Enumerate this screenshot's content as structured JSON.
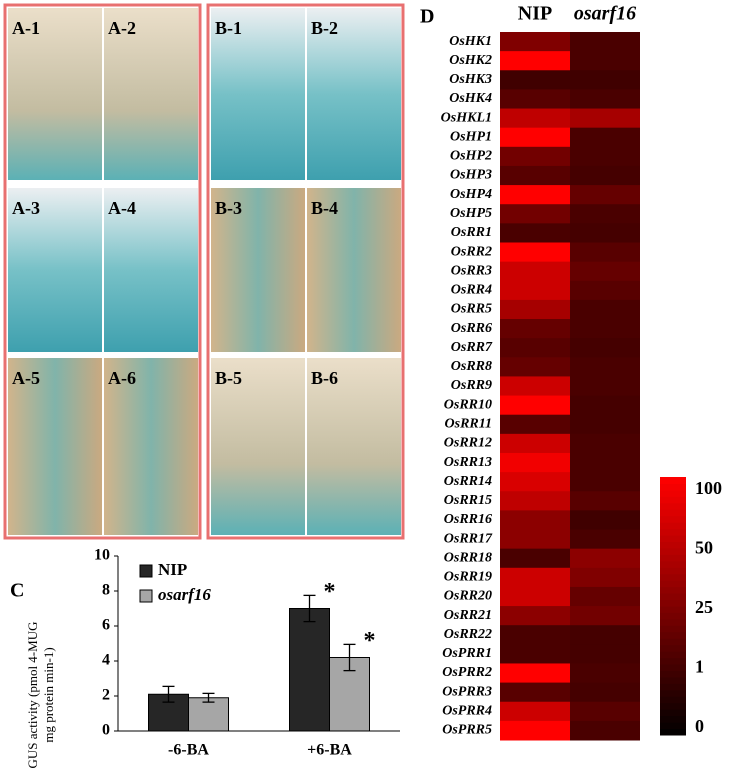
{
  "photo_panels": {
    "A": [
      "A-1",
      "A-2",
      "A-3",
      "A-4",
      "A-5",
      "A-6"
    ],
    "B": [
      "B-1",
      "B-2",
      "B-3",
      "B-4",
      "B-5",
      "B-6"
    ]
  },
  "chart_data": [
    {
      "type": "bar",
      "panel": "C",
      "ylabel": "GUS activity (pmol 4-MUG mg protein min-1)",
      "categories": [
        "-6-BA",
        "+6-BA"
      ],
      "series": [
        {
          "name": "NIP",
          "color": "#262626",
          "values": [
            2.1,
            7.0
          ],
          "errors": [
            0.45,
            0.75
          ],
          "markers": [
            null,
            "*"
          ]
        },
        {
          "name": "osarf16",
          "color": "#a6a6a6",
          "values": [
            1.9,
            4.2
          ],
          "errors": [
            0.25,
            0.75
          ],
          "markers": [
            null,
            "*"
          ]
        }
      ],
      "ylim": [
        0,
        10
      ],
      "yticks": [
        0,
        2,
        4,
        6,
        8,
        10
      ]
    },
    {
      "type": "heatmap",
      "panel": "D",
      "columns": [
        "NIP",
        "osarf16"
      ],
      "rows": [
        "OsHK1",
        "OsHK2",
        "OsHK3",
        "OsHK4",
        "OsHKL1",
        "OsHP1",
        "OsHP2",
        "OsHP3",
        "OsHP4",
        "OsHP5",
        "OsRR1",
        "OsRR2",
        "OsRR3",
        "OsRR4",
        "OsRR5",
        "OsRR6",
        "OsRR7",
        "OsRR8",
        "OsRR9",
        "OsRR10",
        "OsRR11",
        "OsRR12",
        "OsRR13",
        "OsRR14",
        "OsRR15",
        "OsRR16",
        "OsRR17",
        "OsRR18",
        "OsRR19",
        "OsRR20",
        "OsRR21",
        "OsRR22",
        "OsPRR1",
        "OsPRR2",
        "OsPRR3",
        "OsPRR4",
        "OsPRR5"
      ],
      "values": [
        [
          25,
          5
        ],
        [
          100,
          5
        ],
        [
          1,
          1
        ],
        [
          10,
          5
        ],
        [
          50,
          40
        ],
        [
          100,
          5
        ],
        [
          20,
          5
        ],
        [
          10,
          3
        ],
        [
          100,
          15
        ],
        [
          20,
          5
        ],
        [
          5,
          3
        ],
        [
          100,
          10
        ],
        [
          60,
          15
        ],
        [
          60,
          10
        ],
        [
          40,
          5
        ],
        [
          15,
          5
        ],
        [
          10,
          3
        ],
        [
          15,
          5
        ],
        [
          60,
          5
        ],
        [
          100,
          3
        ],
        [
          10,
          3
        ],
        [
          60,
          5
        ],
        [
          90,
          5
        ],
        [
          70,
          5
        ],
        [
          50,
          10
        ],
        [
          30,
          1
        ],
        [
          30,
          5
        ],
        [
          5,
          30
        ],
        [
          60,
          25
        ],
        [
          60,
          15
        ],
        [
          30,
          20
        ],
        [
          5,
          3
        ],
        [
          5,
          3
        ],
        [
          100,
          5
        ],
        [
          10,
          3
        ],
        [
          60,
          10
        ],
        [
          100,
          5
        ]
      ],
      "colorbar_ticks": [
        0,
        1,
        25,
        50,
        100
      ],
      "cmap": [
        "#000000",
        "#ff0000"
      ]
    }
  ]
}
